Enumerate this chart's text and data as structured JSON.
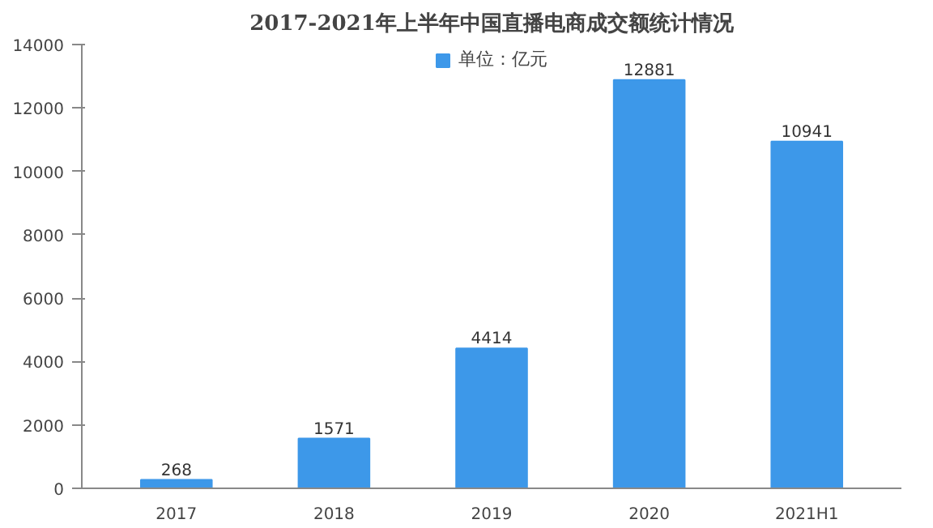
{
  "chart_data": {
    "type": "bar",
    "title": "2017-2021年上半年中国直播电商成交额统计情况",
    "categories": [
      "2017",
      "2018",
      "2019",
      "2020",
      "2021H1"
    ],
    "series": [
      {
        "name": "单位：亿元",
        "color": "#3d98e9",
        "values": [
          268,
          1571,
          4414,
          12881,
          10941
        ]
      }
    ],
    "ylim": [
      0,
      14000
    ],
    "yticks": [
      0,
      2000,
      4000,
      6000,
      8000,
      10000,
      12000,
      14000
    ],
    "data_labels": true,
    "grid": false,
    "legend": "top"
  }
}
